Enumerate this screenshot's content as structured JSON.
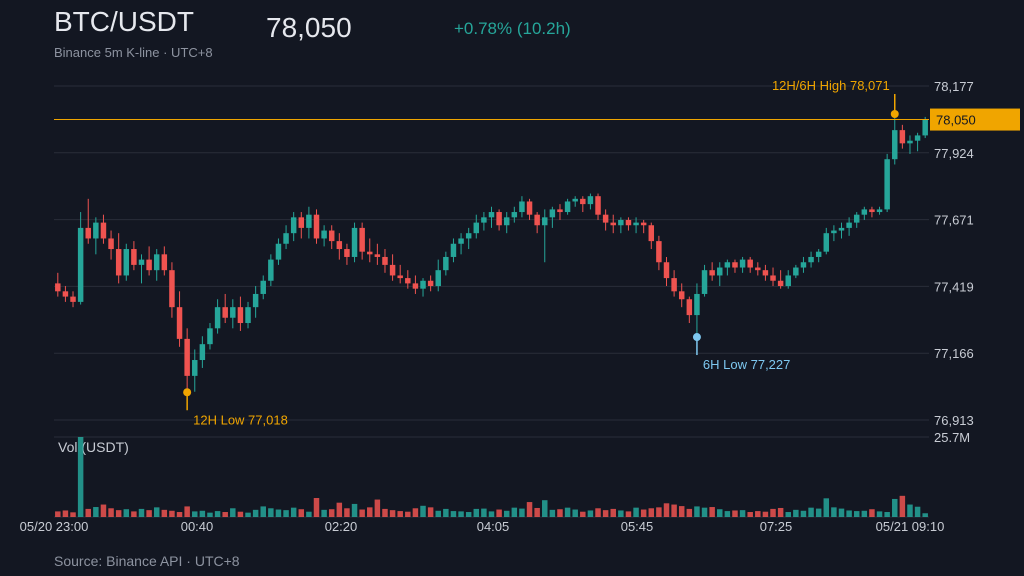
{
  "header": {
    "title": "BTC/USDT",
    "price": "78,050",
    "change": "+0.78% (10.2h)",
    "subtitle": "Binance 5m K-line · UTC+8"
  },
  "footer": {
    "source": "Source: Binance API · UTC+8"
  },
  "colors": {
    "background": "#131722",
    "up": "#26a69a",
    "down": "#ef5350",
    "grid": "#2a2e39",
    "price_line": "#f0a500",
    "high_low": "#f0a500",
    "six_hour_low": "#7ec8f0"
  },
  "chart_data": {
    "type": "candlestick",
    "interval": "5m",
    "price_axis_ticks": [
      "78,177",
      "77,924",
      "77,671",
      "77,419",
      "77,166",
      "76,913"
    ],
    "price_range": [
      76913,
      78177
    ],
    "time_axis_ticks": [
      "05/20 23:00",
      "00:40",
      "02:20",
      "04:05",
      "05:45",
      "07:25",
      "05/21 09:10"
    ],
    "volume_label": "Vol (USDT)",
    "volume_max_label": "25.7M",
    "volume_max": 25.7,
    "current_price": 78050,
    "current_price_label": "78,050",
    "annotations": [
      {
        "label": "12H/6H High 78,071",
        "price": 78071
      },
      {
        "label": "12H Low 77,018",
        "price": 77018
      },
      {
        "label": "6H Low 77,227",
        "price": 77227
      }
    ],
    "candles": [
      [
        77430,
        77470,
        77380,
        77400
      ],
      [
        77400,
        77420,
        77360,
        77380
      ],
      [
        77380,
        77400,
        77340,
        77360
      ],
      [
        77360,
        77700,
        77350,
        77640
      ],
      [
        77640,
        77750,
        77580,
        77600
      ],
      [
        77600,
        77680,
        77540,
        77660
      ],
      [
        77660,
        77690,
        77580,
        77600
      ],
      [
        77600,
        77630,
        77520,
        77560
      ],
      [
        77560,
        77620,
        77430,
        77460
      ],
      [
        77460,
        77580,
        77440,
        77560
      ],
      [
        77560,
        77590,
        77480,
        77500
      ],
      [
        77500,
        77540,
        77430,
        77520
      ],
      [
        77520,
        77570,
        77460,
        77480
      ],
      [
        77480,
        77560,
        77440,
        77540
      ],
      [
        77540,
        77570,
        77460,
        77480
      ],
      [
        77480,
        77510,
        77300,
        77340
      ],
      [
        77340,
        77400,
        77190,
        77220
      ],
      [
        77220,
        77260,
        77018,
        77080
      ],
      [
        77080,
        77180,
        77020,
        77140
      ],
      [
        77140,
        77230,
        77110,
        77200
      ],
      [
        77200,
        77280,
        77180,
        77260
      ],
      [
        77260,
        77370,
        77240,
        77340
      ],
      [
        77340,
        77390,
        77280,
        77300
      ],
      [
        77300,
        77370,
        77260,
        77340
      ],
      [
        77340,
        77380,
        77250,
        77280
      ],
      [
        77280,
        77360,
        77260,
        77340
      ],
      [
        77340,
        77420,
        77300,
        77390
      ],
      [
        77390,
        77460,
        77370,
        77440
      ],
      [
        77440,
        77540,
        77420,
        77520
      ],
      [
        77520,
        77600,
        77500,
        77580
      ],
      [
        77580,
        77650,
        77560,
        77620
      ],
      [
        77620,
        77700,
        77590,
        77680
      ],
      [
        77680,
        77700,
        77600,
        77640
      ],
      [
        77640,
        77720,
        77600,
        77690
      ],
      [
        77690,
        77710,
        77580,
        77600
      ],
      [
        77600,
        77650,
        77570,
        77630
      ],
      [
        77630,
        77650,
        77560,
        77590
      ],
      [
        77590,
        77620,
        77520,
        77560
      ],
      [
        77560,
        77580,
        77500,
        77530
      ],
      [
        77530,
        77660,
        77510,
        77640
      ],
      [
        77640,
        77660,
        77520,
        77550
      ],
      [
        77550,
        77600,
        77510,
        77540
      ],
      [
        77540,
        77580,
        77500,
        77530
      ],
      [
        77530,
        77560,
        77470,
        77500
      ],
      [
        77500,
        77540,
        77440,
        77460
      ],
      [
        77460,
        77500,
        77430,
        77450
      ],
      [
        77450,
        77480,
        77410,
        77430
      ],
      [
        77430,
        77460,
        77390,
        77410
      ],
      [
        77410,
        77450,
        77380,
        77440
      ],
      [
        77440,
        77460,
        77400,
        77420
      ],
      [
        77420,
        77520,
        77400,
        77480
      ],
      [
        77480,
        77550,
        77460,
        77530
      ],
      [
        77530,
        77600,
        77510,
        77580
      ],
      [
        77580,
        77620,
        77540,
        77600
      ],
      [
        77600,
        77640,
        77560,
        77620
      ],
      [
        77620,
        77690,
        77600,
        77660
      ],
      [
        77660,
        77700,
        77630,
        77680
      ],
      [
        77680,
        77720,
        77640,
        77700
      ],
      [
        77700,
        77710,
        77630,
        77650
      ],
      [
        77650,
        77700,
        77620,
        77680
      ],
      [
        77680,
        77720,
        77660,
        77700
      ],
      [
        77700,
        77760,
        77680,
        77740
      ],
      [
        77740,
        77750,
        77670,
        77690
      ],
      [
        77690,
        77700,
        77620,
        77650
      ],
      [
        77650,
        77710,
        77510,
        77680
      ],
      [
        77680,
        77720,
        77640,
        77710
      ],
      [
        77710,
        77730,
        77670,
        77700
      ],
      [
        77700,
        77750,
        77690,
        77740
      ],
      [
        77740,
        77760,
        77720,
        77750
      ],
      [
        77750,
        77760,
        77700,
        77730
      ],
      [
        77730,
        77770,
        77710,
        77760
      ],
      [
        77760,
        77770,
        77670,
        77690
      ],
      [
        77690,
        77710,
        77630,
        77660
      ],
      [
        77660,
        77690,
        77620,
        77650
      ],
      [
        77650,
        77680,
        77620,
        77670
      ],
      [
        77670,
        77680,
        77630,
        77650
      ],
      [
        77650,
        77680,
        77620,
        77660
      ],
      [
        77660,
        77670,
        77620,
        77650
      ],
      [
        77650,
        77660,
        77560,
        77590
      ],
      [
        77590,
        77610,
        77480,
        77510
      ],
      [
        77510,
        77530,
        77420,
        77450
      ],
      [
        77450,
        77480,
        77380,
        77400
      ],
      [
        77400,
        77430,
        77340,
        77370
      ],
      [
        77370,
        77380,
        77280,
        77310
      ],
      [
        77310,
        77430,
        77227,
        77390
      ],
      [
        77390,
        77500,
        77380,
        77480
      ],
      [
        77480,
        77510,
        77440,
        77460
      ],
      [
        77460,
        77510,
        77420,
        77490
      ],
      [
        77490,
        77520,
        77460,
        77510
      ],
      [
        77510,
        77520,
        77470,
        77490
      ],
      [
        77490,
        77530,
        77470,
        77520
      ],
      [
        77520,
        77530,
        77470,
        77490
      ],
      [
        77490,
        77510,
        77460,
        77480
      ],
      [
        77480,
        77500,
        77440,
        77460
      ],
      [
        77460,
        77490,
        77420,
        77440
      ],
      [
        77440,
        77480,
        77410,
        77420
      ],
      [
        77420,
        77480,
        77410,
        77460
      ],
      [
        77460,
        77500,
        77450,
        77490
      ],
      [
        77490,
        77530,
        77470,
        77510
      ],
      [
        77510,
        77550,
        77490,
        77530
      ],
      [
        77530,
        77560,
        77510,
        77550
      ],
      [
        77550,
        77640,
        77540,
        77620
      ],
      [
        77620,
        77650,
        77590,
        77630
      ],
      [
        77630,
        77660,
        77600,
        77640
      ],
      [
        77640,
        77680,
        77610,
        77660
      ],
      [
        77660,
        77700,
        77640,
        77690
      ],
      [
        77690,
        77720,
        77670,
        77710
      ],
      [
        77710,
        77720,
        77680,
        77700
      ],
      [
        77700,
        77720,
        77690,
        77710
      ],
      [
        77710,
        77920,
        77700,
        77900
      ],
      [
        77900,
        78071,
        77880,
        78010
      ],
      [
        78010,
        78030,
        77940,
        77960
      ],
      [
        77960,
        77990,
        77920,
        77970
      ],
      [
        77970,
        78000,
        77930,
        77990
      ],
      [
        77990,
        78060,
        77980,
        78050
      ]
    ],
    "volumes": [
      1.8,
      2.1,
      1.5,
      25.7,
      2.6,
      3.2,
      4.0,
      2.8,
      2.2,
      2.5,
      1.8,
      2.6,
      2.2,
      3.1,
      2.3,
      2.0,
      1.6,
      3.4,
      1.8,
      2.0,
      1.4,
      1.9,
      1.6,
      2.8,
      1.7,
      1.4,
      2.3,
      3.4,
      2.8,
      2.4,
      2.2,
      3.0,
      2.5,
      1.7,
      6.1,
      2.3,
      2.5,
      4.6,
      2.8,
      4.2,
      2.4,
      3.1,
      5.6,
      2.6,
      2.2,
      1.9,
      1.7,
      2.8,
      3.6,
      3.1,
      2.0,
      2.6,
      1.9,
      1.8,
      1.6,
      2.6,
      2.7,
      1.8,
      2.4,
      2.0,
      3.0,
      2.7,
      4.8,
      2.9,
      5.4,
      2.3,
      2.5,
      3.0,
      2.4,
      1.7,
      2.1,
      2.8,
      2.2,
      2.6,
      2.1,
      1.8,
      3.0,
      2.4,
      2.8,
      3.1,
      4.4,
      4.0,
      3.5,
      2.6,
      3.4,
      3.0,
      3.2,
      2.5,
      1.9,
      2.1,
      2.2,
      1.6,
      1.9,
      1.7,
      2.6,
      2.9,
      1.6,
      2.3,
      2.0,
      3.0,
      2.7,
      6.0,
      3.1,
      2.7,
      2.1,
      1.9,
      2.0,
      2.5,
      1.8,
      1.6,
      5.8,
      6.8,
      4.0,
      3.3,
      1.2
    ]
  }
}
